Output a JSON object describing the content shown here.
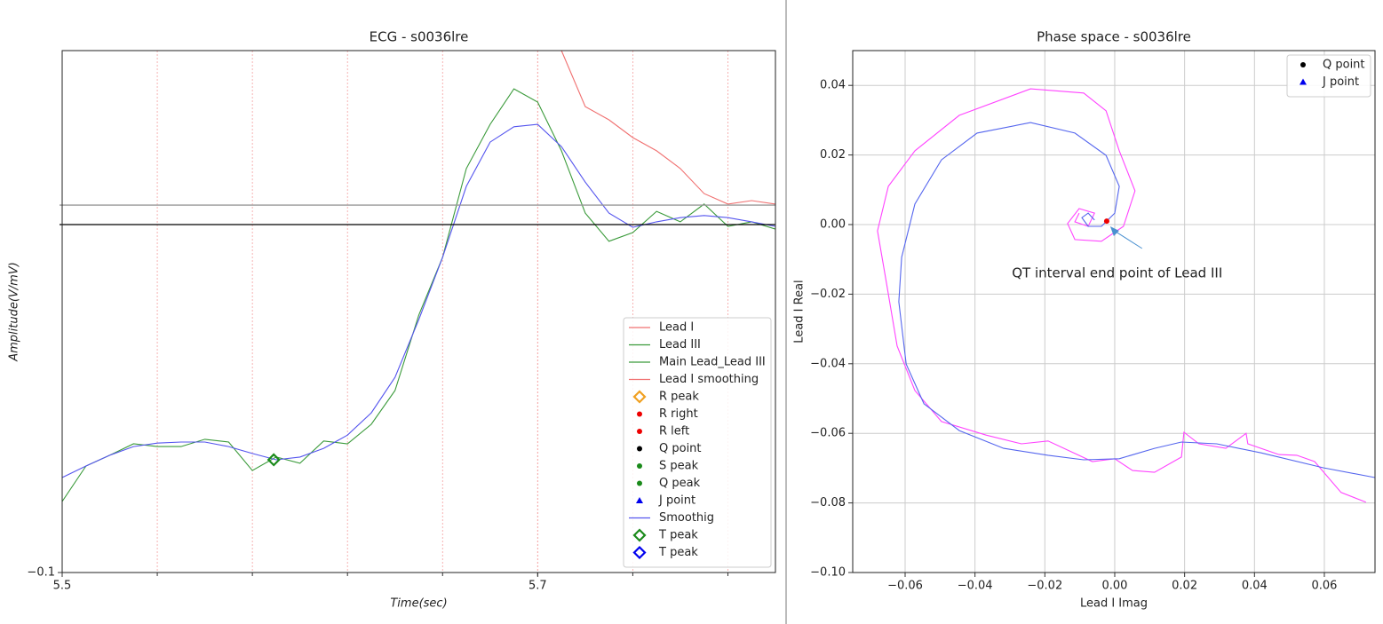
{
  "chart_data": [
    {
      "type": "line",
      "title": "ECG - s0036lre",
      "xlabel": "Time(sec)",
      "ylabel": "Amplitude(V/mV)",
      "xlim": [
        5.5,
        5.8
      ],
      "ylim": [
        -0.1,
        0.05
      ],
      "xticks": [
        5.5,
        5.7
      ],
      "yticks": [
        {
          "value": -0.1,
          "label": "−0.1"
        }
      ],
      "xgrid": [
        5.54,
        5.58,
        5.62,
        5.66,
        5.7,
        5.74,
        5.78
      ],
      "grid_color": "#f4a0a0",
      "hlines": [
        {
          "value": 0,
          "color": "#000000"
        },
        {
          "value": 0.0056,
          "color": "#999999"
        }
      ],
      "x": [
        5.5,
        5.51,
        5.52,
        5.53,
        5.54,
        5.55,
        5.56,
        5.57,
        5.58,
        5.59,
        5.6,
        5.61,
        5.62,
        5.63,
        5.64,
        5.65,
        5.66,
        5.67,
        5.68,
        5.69,
        5.7,
        5.71,
        5.72,
        5.73,
        5.74,
        5.75,
        5.76,
        5.77,
        5.78,
        5.79,
        5.8
      ],
      "series": [
        {
          "color": "#f07070",
          "values": [
            null,
            null,
            null,
            null,
            null,
            null,
            null,
            null,
            null,
            null,
            null,
            null,
            null,
            null,
            null,
            null,
            null,
            null,
            null,
            null,
            null,
            0.05,
            0.0339,
            0.0301,
            0.025,
            0.0212,
            0.0161,
            0.0089,
            0.0059,
            0.0069,
            0.0059
          ]
        },
        {
          "color": "#3a9a3a",
          "values": [
            -0.0796,
            -0.0694,
            -0.0663,
            -0.063,
            -0.0638,
            -0.0638,
            -0.0617,
            -0.0625,
            -0.0707,
            -0.0668,
            -0.0686,
            -0.0622,
            -0.063,
            -0.0574,
            -0.0477,
            -0.026,
            -0.0094,
            0.0161,
            0.0288,
            0.039,
            0.0352,
            0.0212,
            0.0033,
            -0.0048,
            -0.0023,
            0.0038,
            0.0008,
            0.0059,
            -0.0005,
            0.0008,
            -0.0013
          ]
        },
        {
          "color": "#5555ee",
          "values": [
            -0.0727,
            -0.0694,
            -0.0663,
            -0.0638,
            -0.0628,
            -0.0625,
            -0.0625,
            -0.0638,
            -0.0658,
            -0.0676,
            -0.0668,
            -0.0643,
            -0.0605,
            -0.0541,
            -0.0439,
            -0.0273,
            -0.0094,
            0.011,
            0.0237,
            0.0281,
            0.0288,
            0.0224,
            0.0122,
            0.0033,
            -0.0008,
            0.0008,
            0.002,
            0.0026,
            0.002,
            0.0008,
            -0.0005
          ]
        }
      ],
      "points": [
        {
          "x": 5.589,
          "y": -0.0676,
          "color": "#1a8a1a",
          "marker": "diamond"
        }
      ],
      "legend_position": "lower right",
      "legend": [
        {
          "label": "Lead I",
          "color": "#f07070",
          "marker": "line"
        },
        {
          "label": "Lead III",
          "color": "#3a9a3a",
          "marker": "line"
        },
        {
          "label": "Main Lead_Lead III",
          "color": "#3a9a3a",
          "marker": "line"
        },
        {
          "label": "Lead I smoothing",
          "color": "#f07070",
          "marker": "line"
        },
        {
          "label": "R peak",
          "color": "#f0a020",
          "marker": "diamond"
        },
        {
          "label": "R right",
          "color": "#ee0000",
          "marker": "dot"
        },
        {
          "label": "R left",
          "color": "#ee0000",
          "marker": "dot"
        },
        {
          "label": "Q point",
          "color": "#000000",
          "marker": "dot"
        },
        {
          "label": "S peak",
          "color": "#1a8a1a",
          "marker": "dot"
        },
        {
          "label": "Q peak",
          "color": "#1a8a1a",
          "marker": "dot"
        },
        {
          "label": "J point",
          "color": "#0000ee",
          "marker": "triangle"
        },
        {
          "label": "Smoothig",
          "color": "#5555ee",
          "marker": "line"
        },
        {
          "label": "T peak",
          "color": "#1a8a1a",
          "marker": "diamond"
        },
        {
          "label": "T peak",
          "color": "#0000ee",
          "marker": "diamond"
        }
      ]
    },
    {
      "type": "phase",
      "title": "Phase space - s0036lre",
      "xlabel": "Lead I Imag",
      "ylabel": "Lead I Real",
      "xlim": [
        -0.075,
        0.0745
      ],
      "ylim": [
        -0.1,
        0.05
      ],
      "xticks": [
        {
          "value": -0.06,
          "label": "−0.06"
        },
        {
          "value": -0.04,
          "label": "−0.04"
        },
        {
          "value": -0.02,
          "label": "−0.02"
        },
        {
          "value": 0,
          "label": "0.00"
        },
        {
          "value": 0.02,
          "label": "0.02"
        },
        {
          "value": 0.04,
          "label": "0.04"
        },
        {
          "value": 0.06,
          "label": "0.06"
        }
      ],
      "yticks": [
        {
          "value": -0.1,
          "label": "−0.10"
        },
        {
          "value": -0.08,
          "label": "−0.08"
        },
        {
          "value": -0.06,
          "label": "−0.06"
        },
        {
          "value": -0.04,
          "label": "−0.04"
        },
        {
          "value": -0.02,
          "label": "−0.02"
        },
        {
          "value": 0,
          "label": "0.00"
        },
        {
          "value": 0.02,
          "label": "0.02"
        },
        {
          "value": 0.04,
          "label": "0.04"
        }
      ],
      "grid": true,
      "grid_color": "#cccccc",
      "series": [
        {
          "color": "#ff44ff",
          "x": [
            0.0719,
            0.0648,
            0.0572,
            0.0521,
            0.047,
            0.0381,
            0.0376,
            0.0318,
            0.0241,
            0.0198,
            0.0191,
            0.0114,
            0.0051,
            0,
            -0.0064,
            -0.0191,
            -0.0267,
            -0.0368,
            -0.0496,
            -0.0572,
            -0.0623,
            -0.0653,
            -0.0679,
            -0.0648,
            -0.0572,
            -0.0445,
            -0.0241,
            -0.0089,
            -0.0025,
            0.0013,
            0.0058,
            0.0025,
            -0.0038,
            -0.0114,
            -0.0135,
            -0.0102,
            -0.0058,
            -0.0076,
            -0.0114,
            -0.0102
          ],
          "values": [
            -0.0798,
            -0.077,
            -0.0681,
            -0.0663,
            -0.0661,
            -0.063,
            -0.06,
            -0.0643,
            -0.063,
            -0.0597,
            -0.0668,
            -0.0712,
            -0.0707,
            -0.0673,
            -0.0681,
            -0.0622,
            -0.063,
            -0.0605,
            -0.0566,
            -0.0477,
            -0.0349,
            -0.0171,
            -0.0018,
            0.011,
            0.0212,
            0.0314,
            0.039,
            0.0378,
            0.0327,
            0.0212,
            0.0097,
            -0.0005,
            -0.0048,
            -0.0043,
            0.0003,
            0.0046,
            0.0033,
            -0.0005,
            0.0008,
            0.0033
          ]
        },
        {
          "color": "#5566ee",
          "x": [
            0.0745,
            0.0597,
            0.0419,
            0.0292,
            0.0191,
            0.0114,
            0.0013,
            -0.0089,
            -0.0191,
            -0.0318,
            -0.0445,
            -0.0546,
            -0.0597,
            -0.0618,
            -0.061,
            -0.0572,
            -0.0496,
            -0.0394,
            -0.0241,
            -0.0114,
            -0.0025,
            0.0013,
            0,
            -0.0038,
            -0.0076,
            -0.0094,
            -0.0076,
            -0.0058
          ],
          "values": [
            -0.0727,
            -0.0699,
            -0.0656,
            -0.063,
            -0.0625,
            -0.0643,
            -0.0673,
            -0.0676,
            -0.0663,
            -0.0643,
            -0.0592,
            -0.0515,
            -0.0401,
            -0.0222,
            -0.0094,
            0.0059,
            0.0186,
            0.0263,
            0.0293,
            0.0263,
            0.0199,
            0.011,
            0.0033,
            -0.0005,
            -0.0005,
            0.002,
            0.0033,
            0.0013
          ]
        }
      ],
      "points": [
        {
          "x": -0.0023,
          "y": 0.001,
          "color": "#ee0000",
          "marker": "dot"
        }
      ],
      "annotation": {
        "text": "QT interval end point of Lead III",
        "xy": [
          -0.0013,
          -0.0005
        ],
        "xytext": [
          0.0007,
          -0.014
        ],
        "color": "#4a90d0"
      },
      "legend_position": "upper right",
      "legend": [
        {
          "label": "Q point",
          "color": "#000000",
          "marker": "dot"
        },
        {
          "label": "J point",
          "color": "#0000ee",
          "marker": "triangle"
        }
      ]
    }
  ]
}
